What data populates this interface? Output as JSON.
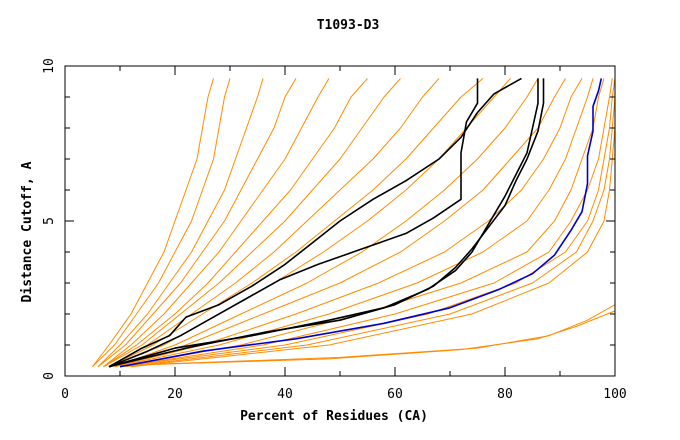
{
  "chart_data": {
    "type": "line",
    "title": "T1093-D3",
    "xlabel": "Percent of Residues (CA)",
    "ylabel": "Distance Cutoff, A",
    "xlim": [
      0,
      100
    ],
    "ylim": [
      0,
      10
    ],
    "x_ticks": [
      0,
      20,
      40,
      60,
      80,
      100
    ],
    "y_ticks": [
      0,
      5,
      10
    ],
    "grid": false,
    "legend": "none",
    "colors": {
      "orange": "#ff8c00",
      "black": "#000000",
      "blue": "#0000cc"
    },
    "series": [
      {
        "color": "#ff8c00",
        "points": [
          [
            5,
            0.3
          ],
          [
            8,
            1
          ],
          [
            12,
            2
          ],
          [
            15,
            3
          ],
          [
            18,
            4
          ],
          [
            20,
            5
          ],
          [
            22,
            6
          ],
          [
            24,
            7
          ],
          [
            25,
            8
          ],
          [
            26,
            9
          ],
          [
            27,
            9.6
          ]
        ]
      },
      {
        "color": "#ff8c00",
        "points": [
          [
            5,
            0.3
          ],
          [
            9,
            1
          ],
          [
            13,
            2
          ],
          [
            17,
            3
          ],
          [
            20,
            4
          ],
          [
            23,
            5
          ],
          [
            25,
            6
          ],
          [
            27,
            7
          ],
          [
            28,
            8
          ],
          [
            29,
            9
          ],
          [
            30,
            9.6
          ]
        ]
      },
      {
        "color": "#ff8c00",
        "points": [
          [
            6,
            0.3
          ],
          [
            10,
            1
          ],
          [
            15,
            2
          ],
          [
            19,
            3
          ],
          [
            23,
            4
          ],
          [
            26,
            5
          ],
          [
            29,
            6
          ],
          [
            31,
            7
          ],
          [
            33,
            8
          ],
          [
            35,
            9
          ],
          [
            36,
            9.6
          ]
        ]
      },
      {
        "color": "#ff8c00",
        "points": [
          [
            6,
            0.3
          ],
          [
            11,
            1
          ],
          [
            16,
            2
          ],
          [
            21,
            3
          ],
          [
            25,
            4
          ],
          [
            29,
            5
          ],
          [
            32,
            6
          ],
          [
            35,
            7
          ],
          [
            38,
            8
          ],
          [
            40,
            9
          ],
          [
            42,
            9.6
          ]
        ]
      },
      {
        "color": "#ff8c00",
        "points": [
          [
            7,
            0.3
          ],
          [
            12,
            1
          ],
          [
            18,
            2
          ],
          [
            23,
            3
          ],
          [
            28,
            4
          ],
          [
            32,
            5
          ],
          [
            36,
            6
          ],
          [
            40,
            7
          ],
          [
            43,
            8
          ],
          [
            46,
            9
          ],
          [
            48,
            9.6
          ]
        ]
      },
      {
        "color": "#ff8c00",
        "points": [
          [
            7,
            0.3
          ],
          [
            13,
            1
          ],
          [
            20,
            2
          ],
          [
            26,
            3
          ],
          [
            31,
            4
          ],
          [
            36,
            5
          ],
          [
            41,
            6
          ],
          [
            45,
            7
          ],
          [
            49,
            8
          ],
          [
            52,
            9
          ],
          [
            55,
            9.6
          ]
        ]
      },
      {
        "color": "#ff8c00",
        "points": [
          [
            7,
            0.3
          ],
          [
            14,
            1
          ],
          [
            21,
            2
          ],
          [
            28,
            3
          ],
          [
            34,
            4
          ],
          [
            40,
            5
          ],
          [
            45,
            6
          ],
          [
            50,
            7
          ],
          [
            54,
            8
          ],
          [
            58,
            9
          ],
          [
            61,
            9.6
          ]
        ]
      },
      {
        "color": "#ff8c00",
        "points": [
          [
            8,
            0.3
          ],
          [
            15,
            1
          ],
          [
            23,
            2
          ],
          [
            31,
            3
          ],
          [
            38,
            4
          ],
          [
            44,
            5
          ],
          [
            50,
            6
          ],
          [
            56,
            7
          ],
          [
            61,
            8
          ],
          [
            65,
            9
          ],
          [
            68,
            9.6
          ]
        ]
      },
      {
        "color": "#ff8c00",
        "points": [
          [
            8,
            0.3
          ],
          [
            16,
            1
          ],
          [
            25,
            2
          ],
          [
            34,
            3
          ],
          [
            42,
            4
          ],
          [
            49,
            5
          ],
          [
            56,
            6
          ],
          [
            62,
            7
          ],
          [
            67,
            8
          ],
          [
            72,
            9
          ],
          [
            76,
            9.6
          ]
        ]
      },
      {
        "color": "#ff8c00",
        "points": [
          [
            8,
            0.3
          ],
          [
            18,
            1
          ],
          [
            28,
            2
          ],
          [
            38,
            3
          ],
          [
            47,
            4
          ],
          [
            55,
            5
          ],
          [
            62,
            6
          ],
          [
            68,
            7
          ],
          [
            73,
            8
          ],
          [
            78,
            9
          ],
          [
            81,
            9.6
          ]
        ]
      },
      {
        "color": "#ff8c00",
        "points": [
          [
            9,
            0.3
          ],
          [
            20,
            1
          ],
          [
            32,
            2
          ],
          [
            44,
            3
          ],
          [
            54,
            4
          ],
          [
            62,
            5
          ],
          [
            69,
            6
          ],
          [
            75,
            7
          ],
          [
            80,
            8
          ],
          [
            84,
            9
          ],
          [
            86,
            9.6
          ]
        ]
      },
      {
        "color": "#ff8c00",
        "points": [
          [
            9,
            0.3
          ],
          [
            22,
            1
          ],
          [
            36,
            2
          ],
          [
            50,
            3
          ],
          [
            61,
            4
          ],
          [
            69,
            5
          ],
          [
            76,
            6
          ],
          [
            81,
            7
          ],
          [
            86,
            8
          ],
          [
            89,
            9
          ],
          [
            91,
            9.6
          ]
        ]
      },
      {
        "color": "#ff8c00",
        "points": [
          [
            9,
            0.3
          ],
          [
            25,
            1
          ],
          [
            42,
            2
          ],
          [
            57,
            3
          ],
          [
            69,
            4
          ],
          [
            77,
            5
          ],
          [
            83,
            6
          ],
          [
            87,
            7
          ],
          [
            90,
            8
          ],
          [
            92,
            9
          ],
          [
            94,
            9.6
          ]
        ]
      },
      {
        "color": "#ff8c00",
        "points": [
          [
            9,
            0.3
          ],
          [
            28,
            1
          ],
          [
            48,
            2
          ],
          [
            64,
            3
          ],
          [
            76,
            4
          ],
          [
            84,
            5
          ],
          [
            88,
            6
          ],
          [
            91,
            7
          ],
          [
            93,
            8
          ],
          [
            95,
            9
          ],
          [
            96,
            9.6
          ]
        ]
      },
      {
        "color": "#ff8c00",
        "points": [
          [
            10,
            0.3
          ],
          [
            32,
            1
          ],
          [
            54,
            2
          ],
          [
            72,
            3
          ],
          [
            84,
            4
          ],
          [
            89,
            5
          ],
          [
            92,
            6
          ],
          [
            94,
            7
          ],
          [
            96,
            8
          ],
          [
            97,
            9
          ],
          [
            98,
            9.6
          ]
        ]
      },
      {
        "color": "#ff8c00",
        "points": [
          [
            10,
            0.3
          ],
          [
            36,
            1
          ],
          [
            60,
            2
          ],
          [
            78,
            3
          ],
          [
            88,
            4
          ],
          [
            92,
            5
          ],
          [
            95,
            6
          ],
          [
            97,
            7
          ],
          [
            98,
            8
          ],
          [
            99,
            9
          ],
          [
            99.5,
            9.6
          ]
        ]
      },
      {
        "color": "#ff8c00",
        "points": [
          [
            10,
            0.3
          ],
          [
            40,
            1
          ],
          [
            66,
            2
          ],
          [
            82,
            3
          ],
          [
            91,
            4
          ],
          [
            95,
            5
          ],
          [
            97,
            6
          ],
          [
            98,
            7
          ],
          [
            99,
            8
          ],
          [
            99.5,
            9
          ],
          [
            100,
            9.6
          ]
        ]
      },
      {
        "color": "#ff8c00",
        "points": [
          [
            11,
            0.3
          ],
          [
            44,
            1
          ],
          [
            70,
            2
          ],
          [
            85,
            3
          ],
          [
            93,
            4
          ],
          [
            96,
            5
          ],
          [
            98,
            6
          ],
          [
            99,
            7
          ],
          [
            99.5,
            8
          ],
          [
            100,
            9
          ],
          [
            100,
            9.6
          ]
        ]
      },
      {
        "color": "#ff8c00",
        "points": [
          [
            12,
            0.3
          ],
          [
            48,
            1
          ],
          [
            74,
            2
          ],
          [
            88,
            3
          ],
          [
            95,
            4
          ],
          [
            98,
            5
          ],
          [
            99,
            6
          ],
          [
            99.5,
            7
          ],
          [
            100,
            8
          ],
          [
            100,
            9
          ],
          [
            100,
            9.6
          ]
        ]
      },
      {
        "color": "#ff8c00",
        "points": [
          [
            12,
            0.35
          ],
          [
            50,
            0.6
          ],
          [
            75,
            0.9
          ],
          [
            88,
            1.3
          ],
          [
            95,
            1.8
          ],
          [
            100,
            2.3
          ],
          [
            100,
            9.6
          ]
        ]
      },
      {
        "color": "#ff8c00",
        "points": [
          [
            12,
            0.35
          ],
          [
            48,
            0.55
          ],
          [
            72,
            0.85
          ],
          [
            86,
            1.2
          ],
          [
            93,
            1.6
          ],
          [
            100,
            2.1
          ],
          [
            100,
            9.6
          ]
        ]
      },
      {
        "color": "#000000",
        "points": [
          [
            8,
            0.3
          ],
          [
            14,
            0.9
          ],
          [
            19,
            1.3
          ],
          [
            22,
            1.9
          ],
          [
            28,
            2.3
          ],
          [
            34,
            2.9
          ],
          [
            40,
            3.6
          ],
          [
            45,
            4.3
          ],
          [
            50,
            5
          ],
          [
            56,
            5.7
          ],
          [
            62,
            6.3
          ],
          [
            68,
            7
          ],
          [
            72,
            7.7
          ],
          [
            75,
            8.5
          ],
          [
            78,
            9.1
          ],
          [
            83,
            9.6
          ]
        ]
      },
      {
        "color": "#000000",
        "points": [
          [
            8,
            0.3
          ],
          [
            15,
            0.8
          ],
          [
            21,
            1.3
          ],
          [
            27,
            1.9
          ],
          [
            33,
            2.5
          ],
          [
            39,
            3.1
          ],
          [
            46,
            3.6
          ],
          [
            54,
            4.1
          ],
          [
            62,
            4.6
          ],
          [
            67,
            5.1
          ],
          [
            72,
            5.7
          ],
          [
            72,
            7.2
          ],
          [
            73,
            8.2
          ],
          [
            75,
            8.8
          ],
          [
            75,
            9.6
          ]
        ]
      },
      {
        "color": "#000000",
        "points": [
          [
            8,
            0.3
          ],
          [
            20,
            0.9
          ],
          [
            34,
            1.3
          ],
          [
            48,
            1.8
          ],
          [
            58,
            2.2
          ],
          [
            66,
            2.8
          ],
          [
            71,
            3.4
          ],
          [
            74,
            4
          ],
          [
            76,
            4.6
          ],
          [
            78,
            5.2
          ],
          [
            80,
            5.8
          ],
          [
            82,
            6.5
          ],
          [
            84,
            7.2
          ],
          [
            85,
            8
          ],
          [
            86,
            8.8
          ],
          [
            86,
            9.6
          ]
        ]
      },
      {
        "color": "#000000",
        "points": [
          [
            8,
            0.3
          ],
          [
            22,
            0.9
          ],
          [
            36,
            1.4
          ],
          [
            50,
            1.8
          ],
          [
            60,
            2.3
          ],
          [
            67,
            2.9
          ],
          [
            71,
            3.5
          ],
          [
            74,
            4.1
          ],
          [
            77,
            4.8
          ],
          [
            80,
            5.5
          ],
          [
            82,
            6.3
          ],
          [
            84,
            7
          ],
          [
            86,
            7.9
          ],
          [
            87,
            8.8
          ],
          [
            87,
            9.6
          ]
        ]
      },
      {
        "color": "#0000cc",
        "points": [
          [
            10,
            0.3
          ],
          [
            25,
            0.8
          ],
          [
            42,
            1.2
          ],
          [
            58,
            1.7
          ],
          [
            70,
            2.2
          ],
          [
            79,
            2.8
          ],
          [
            85,
            3.3
          ],
          [
            89,
            3.9
          ],
          [
            92,
            4.7
          ],
          [
            94,
            5.3
          ],
          [
            95,
            6.2
          ],
          [
            95,
            7.1
          ],
          [
            96,
            7.9
          ],
          [
            96,
            8.7
          ],
          [
            97,
            9.2
          ],
          [
            97.5,
            9.6
          ]
        ]
      }
    ]
  }
}
